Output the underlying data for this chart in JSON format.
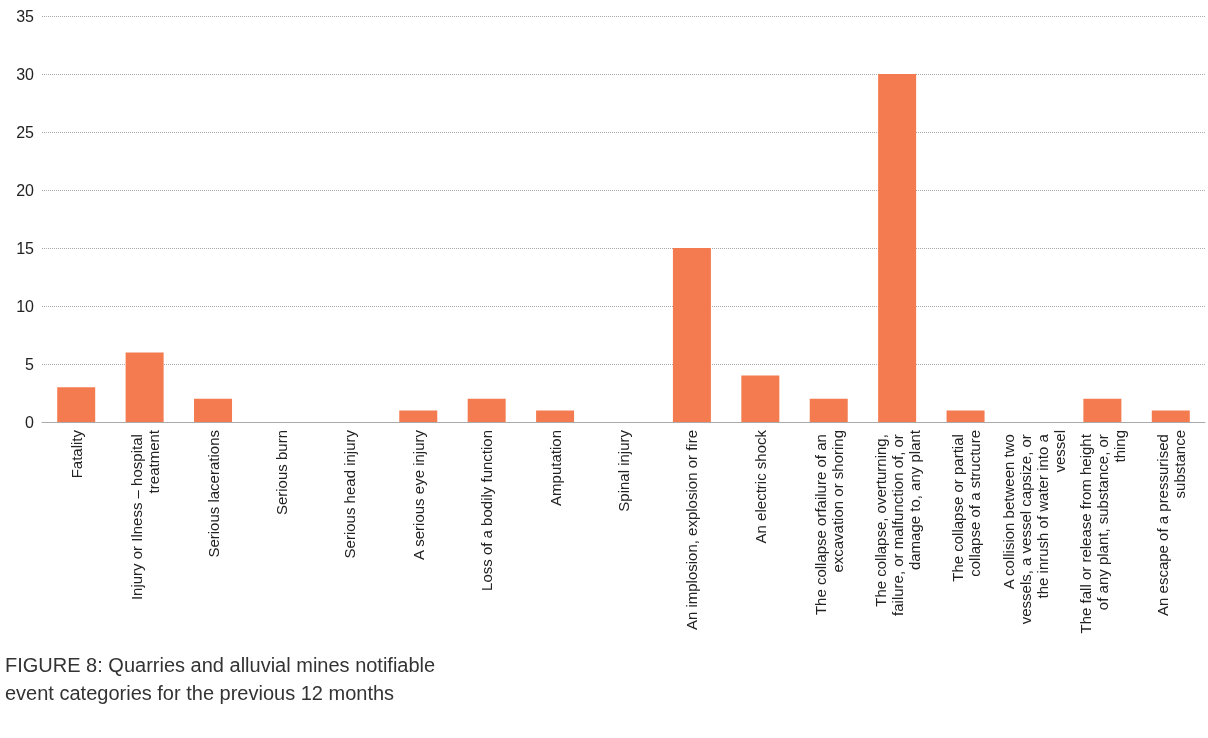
{
  "chart_data": {
    "type": "bar",
    "title": "FIGURE 8: Quarries and alluvial mines notifiable event categories for the previous 12 months",
    "categories": [
      "Fatality",
      "Injury or Ilness – hospital treatment",
      "Serious lacerations",
      "Serious burn",
      "Serious head injury",
      "A serious eye injury",
      "Loss of a bodily function",
      "Amputation",
      "Spinal injury",
      "An implosion, explosion or fire",
      "An electric shock",
      "The collapse orfailure of an excavation or shoring",
      "The collapse, overturning, failure, or malfunction of, or damage to, any plant",
      "The collapse or partial collapse of a structure",
      "A collision between two vessels, a vessel capsize, or the inrush of water into a vessel",
      "The fall or release from height of any plant, substance, or thing",
      "An escape of a pressurised substance"
    ],
    "values": [
      3,
      6,
      2,
      0,
      0,
      1,
      2,
      1,
      0,
      15,
      4,
      2,
      30,
      1,
      0,
      2,
      1
    ],
    "color": "#f47b4f",
    "ylim": [
      0,
      35
    ],
    "yticks": [
      0,
      5,
      10,
      15,
      20,
      25,
      30,
      35
    ],
    "grid": "y"
  }
}
